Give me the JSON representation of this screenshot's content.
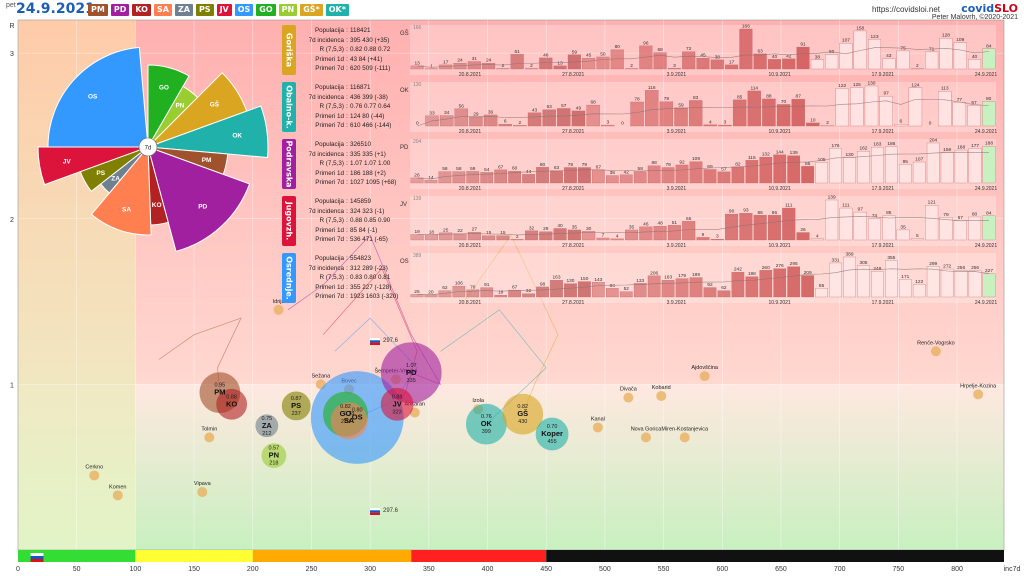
{
  "header": {
    "day": "pet",
    "date": "24.9.2021",
    "url": "https://covidsloi.net",
    "brand_main": "covid",
    "brand_accent": "SLO",
    "author": "Peter Malovrh, ©2020-2021"
  },
  "legend": [
    {
      "label": "PM",
      "color": "#a0522d"
    },
    {
      "label": "PD",
      "color": "#a020a0"
    },
    {
      "label": "KO",
      "color": "#b22222"
    },
    {
      "label": "SA",
      "color": "#ff7f50"
    },
    {
      "label": "ZA",
      "color": "#708090"
    },
    {
      "label": "PS",
      "color": "#808000"
    },
    {
      "label": "JV",
      "color": "#dc143c"
    },
    {
      "label": "OS",
      "color": "#3399ff"
    },
    {
      "label": "GO",
      "color": "#20b020"
    },
    {
      "label": "PN",
      "color": "#9acd32"
    },
    {
      "label": "GŠ*",
      "color": "#daa520"
    },
    {
      "label": "OK*",
      "color": "#20b2aa"
    }
  ],
  "colors": {
    "zone_green": "#c8f0c0",
    "zone_pink": "#ffc0c0",
    "zone_peach": "#ffd0a8"
  },
  "flag_labels": {
    "top": "297.6",
    "bottom": "297.6"
  },
  "regions": [
    {
      "name": "Goriška",
      "code": "GŠ",
      "color": "#daa520",
      "stats": [
        {
          "label": "Populacija",
          "value": "118421"
        },
        {
          "label": "7d incidenca",
          "value": "395 430 (+35)"
        },
        {
          "label": "R (7,5,3)",
          "value": "0.82 0.88 0.72"
        },
        {
          "label": "Primeri 1d",
          "value": "43 84 (+41)"
        },
        {
          "label": "Primeri 7d",
          "value": "620 509 (-111)"
        }
      ],
      "ymax": "166",
      "dates": [
        "20.8.2021",
        "27.8.2021",
        "3.9.2021",
        "10.9.2021",
        "17.9.2021",
        "24.9.2021"
      ],
      "bars": [
        13,
        1,
        17,
        24,
        31,
        24,
        2,
        61,
        2,
        46,
        13,
        59,
        45,
        50,
        80,
        2,
        96,
        68,
        3,
        72,
        45,
        38,
        17,
        166,
        63,
        40,
        42,
        91,
        38,
        60,
        107,
        158,
        123,
        43,
        75,
        2,
        71,
        128,
        109,
        40,
        84
      ]
    },
    {
      "name": "Obalno-k.",
      "code": "OK",
      "color": "#20b2aa",
      "stats": [
        {
          "label": "Populacija",
          "value": "116871"
        },
        {
          "label": "7d incidenca",
          "value": "436 399 (-38)"
        },
        {
          "label": "R (7,5,3)",
          "value": "0.76 0.77 0.64"
        },
        {
          "label": "Primeri 1d",
          "value": "124 80 (-44)"
        },
        {
          "label": "Primeri 7d",
          "value": "610 466 (-144)"
        }
      ],
      "ymax": "130",
      "dates": [
        "20.8.2021",
        "27.8.2021",
        "3.9.2021",
        "10.9.2021",
        "17.9.2021",
        "24.9.2021"
      ],
      "bars": [
        0,
        33,
        34,
        56,
        29,
        36,
        6,
        2,
        43,
        53,
        57,
        49,
        68,
        3,
        0,
        78,
        116,
        79,
        59,
        83,
        4,
        3,
        85,
        114,
        88,
        70,
        87,
        10,
        2,
        122,
        125,
        130,
        97,
        6,
        124,
        0,
        113,
        77,
        67,
        80
      ]
    },
    {
      "name": "Podravska",
      "code": "PD",
      "color": "#a020a0",
      "stats": [
        {
          "label": "Populacija",
          "value": "326510"
        },
        {
          "label": "7d incidenca",
          "value": "335 335 (+1)"
        },
        {
          "label": "R (7,5,3)",
          "value": "1.07 1.07 1.00"
        },
        {
          "label": "Primeri 1d",
          "value": "186 188 (+2)"
        },
        {
          "label": "Primeri 7d",
          "value": "1027 1095 (+68)"
        }
      ],
      "ymax": "204",
      "dates": [
        "20.8.2021",
        "27.8.2021",
        "3.9.2021",
        "10.9.2021",
        "17.9.2021",
        "24.9.2021"
      ],
      "bars": [
        26,
        14,
        58,
        58,
        59,
        54,
        67,
        60,
        44,
        80,
        63,
        79,
        79,
        67,
        38,
        42,
        58,
        88,
        79,
        92,
        109,
        69,
        57,
        82,
        116,
        132,
        144,
        139,
        85,
        105,
        176,
        130,
        162,
        183,
        186,
        95,
        107,
        204,
        156,
        168,
        177,
        188
      ]
    },
    {
      "name": "Jugovzh.",
      "code": "JV",
      "color": "#dc143c",
      "stats": [
        {
          "label": "Populacija",
          "value": "145859"
        },
        {
          "label": "7d incidenca",
          "value": "324 323 (-1)"
        },
        {
          "label": "R (7,5,3)",
          "value": "0.88 0.85 0.90"
        },
        {
          "label": "Primeri 1d",
          "value": "85 84 (-1)"
        },
        {
          "label": "Primeri 7d",
          "value": "536 471 (-65)"
        }
      ],
      "ymax": "139",
      "dates": [
        "20.8.2021",
        "27.8.2021",
        "3.9.2021",
        "10.9.2021",
        "17.9.2021",
        "24.9.2021"
      ],
      "bars": [
        19,
        18,
        25,
        22,
        27,
        15,
        15,
        2,
        32,
        29,
        40,
        35,
        30,
        7,
        4,
        35,
        46,
        48,
        51,
        65,
        9,
        3,
        90,
        93,
        86,
        86,
        111,
        26,
        4,
        139,
        111,
        97,
        74,
        85,
        35,
        5,
        121,
        79,
        67,
        80,
        84
      ]
    },
    {
      "name": "Osrednje.",
      "code": "OS",
      "color": "#3399ff",
      "stats": [
        {
          "label": "Populacija",
          "value": "554823"
        },
        {
          "label": "7d incidenca",
          "value": "312 289 (-23)"
        },
        {
          "label": "R (7,5,3)",
          "value": "0.83 0.80 0.81"
        },
        {
          "label": "Primeri 1d",
          "value": "355 227 (-128)"
        },
        {
          "label": "Primeri 7d",
          "value": "1923 1603 (-320)"
        }
      ],
      "ymax": "389",
      "dates": [
        "20.8.2021",
        "27.8.2021",
        "3.9.2021",
        "10.9.2021",
        "17.9.2021",
        "24.9.2021"
      ],
      "bars": [
        25,
        20,
        62,
        106,
        70,
        91,
        18,
        67,
        32,
        98,
        163,
        130,
        150,
        143,
        84,
        52,
        133,
        206,
        163,
        179,
        189,
        92,
        62,
        242,
        198,
        260,
        276,
        295,
        209,
        85,
        331,
        389,
        305,
        249,
        355,
        171,
        122,
        299,
        272,
        256,
        256,
        227
      ]
    }
  ],
  "chart_data": {
    "type": "scatter",
    "title": "",
    "xlabel": "inc7d",
    "ylabel": "R",
    "xlim": [
      0,
      840
    ],
    "ylim": [
      0,
      3.2
    ],
    "xticks": [
      0,
      50,
      100,
      150,
      200,
      250,
      300,
      350,
      400,
      450,
      500,
      550,
      600,
      650,
      700,
      750,
      800
    ],
    "yticks": [
      1,
      2,
      3
    ],
    "grid": true,
    "zones": [
      {
        "from": 0,
        "to": 100,
        "color": "#33dd33"
      },
      {
        "from": 100,
        "to": 200,
        "color": "#ffff33"
      },
      {
        "from": 200,
        "to": 335,
        "color": "#ffaa00"
      },
      {
        "from": 335,
        "to": 450,
        "color": "#ff2020"
      },
      {
        "from": 450,
        "to": 840,
        "color": "#111111"
      }
    ],
    "regions": [
      {
        "label": "PM",
        "x": 172,
        "y": 0.95,
        "value": "",
        "color": "#a0522d",
        "size": 20
      },
      {
        "label": "KO",
        "x": 182,
        "y": 0.88,
        "value": "",
        "color": "#b22222",
        "size": 15
      },
      {
        "label": "ZA",
        "x": 212,
        "y": 0.75,
        "value": "212",
        "color": "#708090",
        "size": 11
      },
      {
        "label": "PS",
        "x": 237,
        "y": 0.87,
        "value": "237",
        "color": "#808000",
        "size": 14
      },
      {
        "label": "PN",
        "x": 218,
        "y": 0.57,
        "value": "218",
        "color": "#9acd32",
        "size": 12
      },
      {
        "label": "OS",
        "x": 289,
        "y": 0.8,
        "value": "",
        "color": "#3399ff",
        "size": 46
      },
      {
        "label": "GO",
        "x": 279,
        "y": 0.82,
        "value": "279",
        "color": "#20b020",
        "size": 22
      },
      {
        "label": "SA",
        "x": 282,
        "y": 0.78,
        "value": "",
        "color": "#ff7f50",
        "size": 18
      },
      {
        "label": "JV",
        "x": 323,
        "y": 0.88,
        "value": "323",
        "color": "#dc143c",
        "size": 16
      },
      {
        "label": "PD",
        "x": 335,
        "y": 1.07,
        "value": "335",
        "color": "#a020a0",
        "size": 30
      },
      {
        "label": "OK",
        "x": 399,
        "y": 0.76,
        "value": "399",
        "color": "#20b2aa",
        "size": 20
      },
      {
        "label": "GŠ",
        "x": 430,
        "y": 0.82,
        "value": "430",
        "color": "#daa520",
        "size": 20
      },
      {
        "label": "Koper",
        "x": 455,
        "y": 0.7,
        "value": "455",
        "color": "#20b2aa",
        "size": 16
      }
    ],
    "towns": [
      {
        "label": "Idrija",
        "x": 222,
        "y": 1.45
      },
      {
        "label": "Sežana",
        "x": 258,
        "y": 1.0
      },
      {
        "label": "Bovec",
        "x": 282,
        "y": 0.97
      },
      {
        "label": "Šempeter-Vrtojba",
        "x": 322,
        "y": 1.03
      },
      {
        "label": "Ankaran",
        "x": 338,
        "y": 0.83
      },
      {
        "label": "Tolmin",
        "x": 163,
        "y": 0.68
      },
      {
        "label": "Cerkno",
        "x": 65,
        "y": 0.45
      },
      {
        "label": "Komen",
        "x": 85,
        "y": 0.33
      },
      {
        "label": "Vipava",
        "x": 157,
        "y": 0.35
      },
      {
        "label": "Izola",
        "x": 392,
        "y": 0.85
      },
      {
        "label": "Kanal",
        "x": 494,
        "y": 0.74
      },
      {
        "label": "Divača",
        "x": 520,
        "y": 0.92
      },
      {
        "label": "Kobarid",
        "x": 548,
        "y": 0.93
      },
      {
        "label": "Ajdovščina",
        "x": 585,
        "y": 1.05
      },
      {
        "label": "Nova Gorica",
        "x": 535,
        "y": 0.68
      },
      {
        "label": "Miren-Kostanjevica",
        "x": 568,
        "y": 0.68
      },
      {
        "label": "Renče-Vogrsko",
        "x": 782,
        "y": 1.2
      },
      {
        "label": "Hrpelje-Kozina",
        "x": 818,
        "y": 0.94
      }
    ]
  }
}
